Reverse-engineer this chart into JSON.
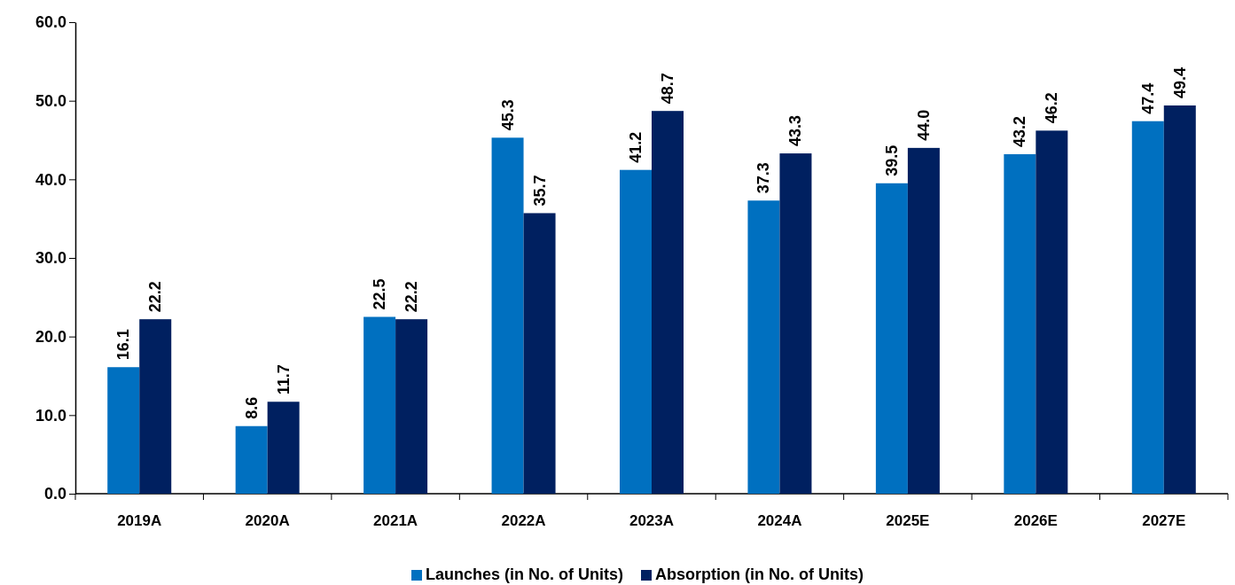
{
  "chart_data": {
    "type": "bar",
    "categories": [
      "2019A",
      "2020A",
      "2021A",
      "2022A",
      "2023A",
      "2024A",
      "2025E",
      "2026E",
      "2027E"
    ],
    "series": [
      {
        "name": "Launches (in No. of Units)",
        "color": "#0070c0",
        "values": [
          16.1,
          8.6,
          22.5,
          45.3,
          41.2,
          37.3,
          39.5,
          43.2,
          47.4
        ],
        "value_labels": [
          "16.1",
          "8.6",
          "22.5",
          "45.3",
          "41.2",
          "37.3",
          "39.5",
          "43.2",
          "47.4"
        ]
      },
      {
        "name": "Absorption (in No. of Units)",
        "color": "#002060",
        "values": [
          22.2,
          11.7,
          22.2,
          35.7,
          48.7,
          43.3,
          44.0,
          46.2,
          49.4
        ],
        "value_labels": [
          "22.2",
          "11.7",
          "22.2",
          "35.7",
          "48.7",
          "43.3",
          "44.0",
          "46.2",
          "49.4"
        ]
      }
    ],
    "ylim": [
      0,
      60
    ],
    "yticks": [
      {
        "value": 0,
        "label": "0.0"
      },
      {
        "value": 10,
        "label": "10.0"
      },
      {
        "value": 20,
        "label": "20.0"
      },
      {
        "value": 30,
        "label": "30.0"
      },
      {
        "value": 40,
        "label": "40.0"
      },
      {
        "value": 50,
        "label": "50.0"
      },
      {
        "value": 60,
        "label": "60.0"
      }
    ],
    "grid": false,
    "legend": "bottom"
  }
}
